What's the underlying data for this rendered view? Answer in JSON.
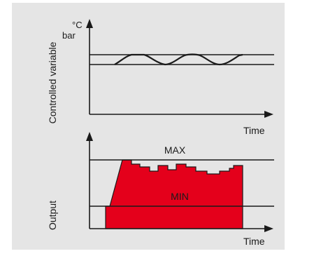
{
  "top_panel": {
    "unit_label_1": "°C",
    "unit_label_2": "bar",
    "y_axis_label": "Controlled variable",
    "x_axis_label": "Time"
  },
  "bottom_panel": {
    "max_label": "MAX",
    "min_label": "MIN",
    "y_axis_label": "Output",
    "x_axis_label": "Time"
  },
  "colors": {
    "background": "#e5e5e5",
    "output_fill": "#e4001b",
    "line": "#1a1a1a"
  }
}
